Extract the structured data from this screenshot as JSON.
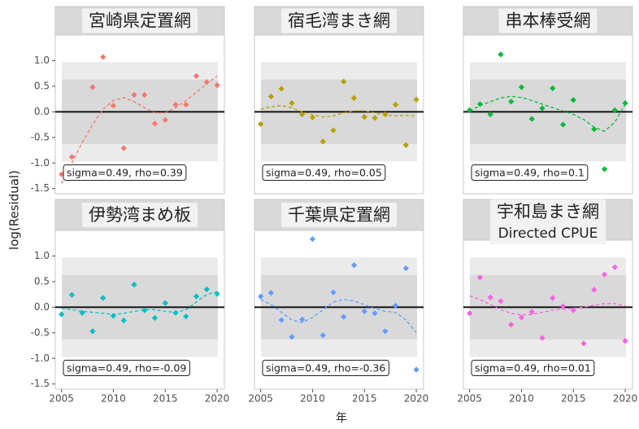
{
  "xlabel": "年",
  "ylabel": "log(Residual)",
  "chart_data": [
    {
      "type": "scatter",
      "title": "宮崎県定置網",
      "color": "#f8766d",
      "x": [
        2005,
        2006,
        2008,
        2009,
        2010,
        2011,
        2012,
        2013,
        2014,
        2015,
        2016,
        2017,
        2018,
        2019,
        2020
      ],
      "values": [
        -1.22,
        -0.88,
        0.48,
        1.07,
        0.12,
        -0.71,
        0.33,
        0.33,
        -0.23,
        -0.16,
        0.14,
        0.14,
        0.7,
        0.58,
        0.52
      ],
      "smooth": {
        "x": [
          2005,
          2006,
          2007,
          2008,
          2009,
          2010,
          2011,
          2012,
          2013,
          2014,
          2015,
          2016,
          2017,
          2018,
          2019,
          2020
        ],
        "values": [
          -1.4,
          -1.0,
          -0.6,
          -0.25,
          0.05,
          0.22,
          0.28,
          0.2,
          0.08,
          -0.02,
          -0.02,
          0.08,
          0.22,
          0.38,
          0.55,
          0.7
        ]
      },
      "annotation": "sigma=0.49, rho=0.39",
      "bands": [
        {
          "lower": -0.97,
          "upper": 0.97,
          "color": "#ebebeb"
        },
        {
          "lower": -0.63,
          "upper": 0.63,
          "color": "#d9d9d9"
        }
      ],
      "hline": 0,
      "xlim": [
        2004.4,
        2020.7
      ],
      "ylim": [
        -1.6,
        1.5
      ],
      "yticks": [
        {
          "value": -1.5,
          "label": "-1.5"
        },
        {
          "value": -1,
          "label": "-1.0"
        },
        {
          "value": -0.5,
          "label": "-0.5"
        },
        {
          "value": 0,
          "label": "0.0"
        },
        {
          "value": 0.5,
          "label": "0.5"
        },
        {
          "value": 1,
          "label": "1.0"
        }
      ]
    },
    {
      "type": "scatter",
      "title": "宿毛湾まき網",
      "color": "#b79f00",
      "x": [
        2005,
        2006,
        2007,
        2008,
        2009,
        2010,
        2011,
        2012,
        2013,
        2014,
        2015,
        2016,
        2017,
        2018,
        2019,
        2020
      ],
      "values": [
        -0.24,
        0.3,
        0.45,
        0.17,
        -0.05,
        -0.11,
        -0.58,
        -0.36,
        0.59,
        0.27,
        -0.1,
        -0.12,
        -0.05,
        0.14,
        -0.65,
        0.24
      ],
      "smooth": {
        "x": [
          2005,
          2006,
          2007,
          2008,
          2009,
          2010,
          2011,
          2012,
          2013,
          2014,
          2015,
          2016,
          2017,
          2018,
          2019,
          2020
        ],
        "values": [
          0.05,
          0.1,
          0.12,
          0.08,
          0,
          -0.06,
          -0.1,
          -0.08,
          -0.02,
          0.02,
          0.02,
          -0.02,
          -0.06,
          -0.08,
          -0.07,
          -0.08
        ]
      },
      "annotation": "sigma=0.49, rho=0.05",
      "bands": [
        {
          "lower": -0.97,
          "upper": 0.97,
          "color": "#ebebeb"
        },
        {
          "lower": -0.63,
          "upper": 0.63,
          "color": "#d9d9d9"
        }
      ],
      "hline": 0,
      "xlim": [
        2004.4,
        2020.7
      ],
      "ylim": [
        -1.6,
        1.5
      ]
    },
    {
      "type": "scatter",
      "title": "串本棒受網",
      "color": "#00ba38",
      "x": [
        2005,
        2006,
        2007,
        2008,
        2009,
        2010,
        2011,
        2012,
        2013,
        2014,
        2015,
        2017,
        2018,
        2019,
        2020
      ],
      "values": [
        0.03,
        0.15,
        -0.05,
        1.12,
        0.2,
        0.48,
        -0.14,
        0.07,
        0.46,
        -0.25,
        0.23,
        -0.34,
        -1.12,
        0.03,
        0.17
      ],
      "smooth": {
        "x": [
          2005,
          2006,
          2007,
          2008,
          2009,
          2010,
          2011,
          2012,
          2013,
          2014,
          2015,
          2016,
          2017,
          2018,
          2019,
          2020
        ],
        "values": [
          0.02,
          0.12,
          0.2,
          0.27,
          0.3,
          0.28,
          0.22,
          0.15,
          0.08,
          0.02,
          -0.05,
          -0.15,
          -0.3,
          -0.38,
          -0.2,
          0.15
        ]
      },
      "annotation": "sigma=0.49, rho=0.1",
      "bands": [
        {
          "lower": -0.97,
          "upper": 0.97,
          "color": "#ebebeb"
        },
        {
          "lower": -0.63,
          "upper": 0.63,
          "color": "#d9d9d9"
        }
      ],
      "hline": 0,
      "xlim": [
        2004.4,
        2020.7
      ],
      "ylim": [
        -1.6,
        1.5
      ]
    },
    {
      "type": "scatter",
      "title": "伊勢湾まめ板",
      "color": "#00bfc4",
      "x": [
        2005,
        2006,
        2007,
        2008,
        2009,
        2010,
        2011,
        2012,
        2013,
        2014,
        2015,
        2016,
        2017,
        2018,
        2019,
        2020
      ],
      "values": [
        -0.14,
        0.24,
        -0.11,
        -0.47,
        0.18,
        -0.17,
        -0.26,
        0.44,
        -0.06,
        -0.21,
        0.08,
        -0.11,
        -0.18,
        0.21,
        0.35,
        0.26
      ],
      "smooth": {
        "x": [
          2005,
          2006,
          2007,
          2008,
          2009,
          2010,
          2011,
          2012,
          2013,
          2014,
          2015,
          2016,
          2017,
          2018,
          2019,
          2020
        ],
        "values": [
          -0.02,
          -0.05,
          -0.08,
          -0.1,
          -0.12,
          -0.14,
          -0.12,
          -0.08,
          -0.05,
          -0.05,
          -0.08,
          -0.1,
          -0.05,
          0.1,
          0.25,
          0.3
        ]
      },
      "annotation": "sigma=0.49, rho=-0.09",
      "bands": [
        {
          "lower": -0.97,
          "upper": 0.97,
          "color": "#ebebeb"
        },
        {
          "lower": -0.63,
          "upper": 0.63,
          "color": "#d9d9d9"
        }
      ],
      "hline": 0,
      "xlim": [
        2004.4,
        2020.7
      ],
      "ylim": [
        -1.6,
        1.5
      ],
      "yticks": [
        {
          "value": -1.5,
          "label": "-1.5"
        },
        {
          "value": -1,
          "label": "-1.0"
        },
        {
          "value": -0.5,
          "label": "-0.5"
        },
        {
          "value": 0,
          "label": "0.0"
        },
        {
          "value": 0.5,
          "label": "0.5"
        },
        {
          "value": 1,
          "label": "1.0"
        }
      ],
      "xticks": [
        2005,
        2010,
        2015,
        2020
      ]
    },
    {
      "type": "scatter",
      "title": "千葉県定置網",
      "color": "#619cff",
      "x": [
        2005,
        2006,
        2007,
        2008,
        2009,
        2010,
        2011,
        2012,
        2013,
        2014,
        2015,
        2016,
        2017,
        2018,
        2019,
        2020
      ],
      "values": [
        0.21,
        0.28,
        -0.25,
        -0.58,
        -0.24,
        1.33,
        -0.55,
        0.29,
        -0.19,
        0.82,
        -0.08,
        -0.12,
        -0.47,
        0.03,
        0.76,
        -1.22
      ],
      "smooth": {
        "x": [
          2005,
          2006,
          2007,
          2008,
          2009,
          2010,
          2011,
          2012,
          2013,
          2014,
          2015,
          2016,
          2017,
          2018,
          2019,
          2020
        ],
        "values": [
          0.15,
          0.05,
          -0.1,
          -0.25,
          -0.3,
          -0.2,
          -0.05,
          0.1,
          0.15,
          0.12,
          0.05,
          -0.03,
          -0.08,
          -0.1,
          -0.25,
          -0.5
        ]
      },
      "annotation": "sigma=0.49, rho=-0.36",
      "bands": [
        {
          "lower": -0.97,
          "upper": 0.97,
          "color": "#ebebeb"
        },
        {
          "lower": -0.63,
          "upper": 0.63,
          "color": "#d9d9d9"
        }
      ],
      "hline": 0,
      "xlim": [
        2004.4,
        2020.7
      ],
      "ylim": [
        -1.6,
        1.5
      ],
      "xticks": [
        2005,
        2010,
        2015,
        2020
      ]
    },
    {
      "type": "scatter",
      "title": "宇和島まき網",
      "subtitle": "Directed CPUE",
      "color": "#f564e3",
      "x": [
        2005,
        2006,
        2007,
        2008,
        2009,
        2010,
        2011,
        2012,
        2013,
        2014,
        2015,
        2016,
        2017,
        2018,
        2019,
        2020
      ],
      "values": [
        -0.12,
        0.58,
        0.19,
        0.12,
        -0.34,
        -0.2,
        -0.09,
        -0.6,
        0.18,
        0.02,
        -0.06,
        -0.71,
        0.34,
        0.64,
        0.78,
        -0.66
      ],
      "smooth": {
        "x": [
          2005,
          2006,
          2007,
          2008,
          2009,
          2010,
          2011,
          2012,
          2013,
          2014,
          2015,
          2016,
          2017,
          2018,
          2019,
          2020
        ],
        "values": [
          0.22,
          0.15,
          0.05,
          -0.05,
          -0.12,
          -0.15,
          -0.14,
          -0.1,
          -0.06,
          -0.04,
          -0.02,
          0,
          0.04,
          0.07,
          0.07,
          0.03
        ]
      },
      "annotation": "sigma=0.49, rho=0.01",
      "bands": [
        {
          "lower": -0.97,
          "upper": 0.97,
          "color": "#ebebeb"
        },
        {
          "lower": -0.63,
          "upper": 0.63,
          "color": "#d9d9d9"
        }
      ],
      "hline": 0,
      "xlim": [
        2004.4,
        2020.7
      ],
      "ylim": [
        -1.6,
        1.5
      ],
      "xticks": [
        2005,
        2010,
        2015,
        2020
      ]
    }
  ]
}
